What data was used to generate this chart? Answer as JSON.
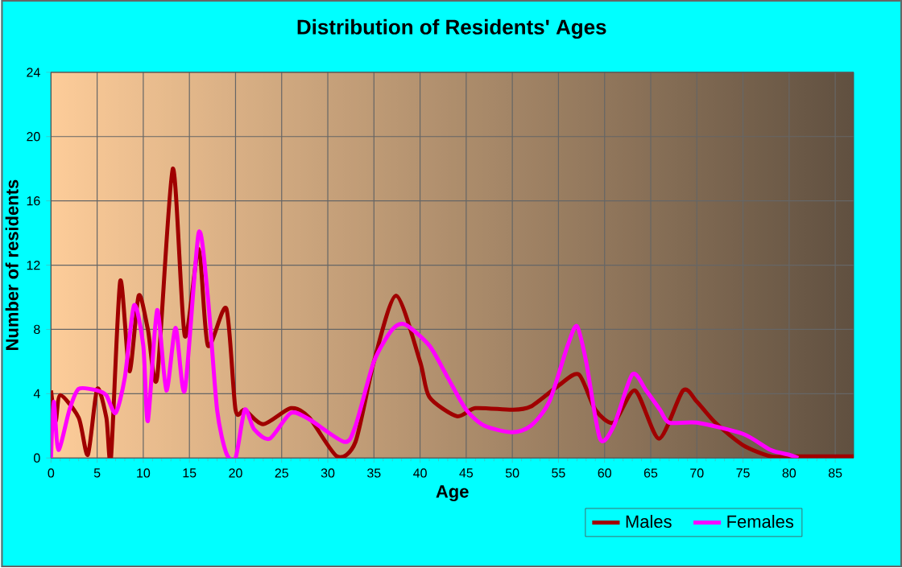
{
  "chart_data": {
    "type": "line",
    "title": "Distribution of Residents' Ages",
    "xlabel": "Age",
    "ylabel": "Number of residents",
    "xlim": [
      0,
      87
    ],
    "xticks": [
      0,
      5,
      10,
      15,
      20,
      25,
      30,
      35,
      40,
      45,
      50,
      55,
      60,
      65,
      70,
      75,
      80,
      85
    ],
    "ylim": [
      0,
      24
    ],
    "yticks": [
      0,
      4,
      8,
      12,
      16,
      20,
      24
    ],
    "grid": true,
    "legend": "bottom right",
    "marker": "none",
    "line_style": "solid",
    "series": [
      {
        "name": "Males",
        "color": "#a00000",
        "x": [
          0,
          0.5,
          1,
          3,
          4,
          5,
          6,
          6.5,
          7.5,
          8.5,
          9.5,
          10.5,
          11.5,
          13.2,
          14.5,
          16,
          17,
          19,
          20,
          21,
          23,
          26,
          28,
          31,
          33,
          35,
          37.4,
          40,
          41,
          44,
          46,
          50,
          52,
          55,
          57.2,
          59,
          61,
          63.3,
          65.9,
          68.5,
          70,
          72,
          75,
          78,
          80,
          85,
          87
        ],
        "values": [
          4.2,
          2.3,
          3.9,
          2.5,
          0.2,
          4.3,
          2.5,
          0,
          11,
          5.4,
          10.1,
          8,
          5,
          18,
          7.6,
          13,
          7,
          9.3,
          3,
          3,
          2.1,
          3.1,
          2.5,
          0.1,
          1,
          6,
          10.1,
          6,
          3.8,
          2.6,
          3.1,
          3,
          3.2,
          4.5,
          5.2,
          3,
          2.2,
          4.2,
          1.2,
          4.2,
          3.5,
          2.2,
          0.8,
          0.1,
          0.1,
          0.1,
          0.1
        ]
      },
      {
        "name": "Females",
        "color": "#ff00ff",
        "x": [
          0,
          0.3,
          0.8,
          2,
          3,
          5,
          6,
          7,
          8,
          9,
          10,
          10.5,
          11.5,
          12.5,
          13.5,
          14.5,
          16,
          17,
          18,
          19,
          20,
          21,
          22,
          23.7,
          26,
          28,
          31.8,
          33,
          35,
          37,
          38.4,
          41,
          43,
          45,
          47,
          50,
          52,
          54,
          56,
          57,
          58,
          59.5,
          61,
          63,
          64.5,
          66,
          67,
          70,
          75,
          78,
          80,
          81
        ],
        "values": [
          0,
          3.5,
          0.5,
          3,
          4.3,
          4.2,
          3.9,
          2.8,
          5,
          9.5,
          7,
          2.3,
          9.2,
          4.2,
          8.1,
          4.2,
          14,
          10,
          3,
          0.3,
          0,
          3,
          1.8,
          1.2,
          2.8,
          2.4,
          1,
          2,
          6,
          8,
          8.3,
          7,
          5,
          3,
          2,
          1.6,
          2,
          3.5,
          7,
          8.2,
          6,
          1.2,
          2,
          5.2,
          4.2,
          3,
          2.2,
          2.2,
          1.5,
          0.5,
          0.2,
          0
        ]
      }
    ]
  }
}
